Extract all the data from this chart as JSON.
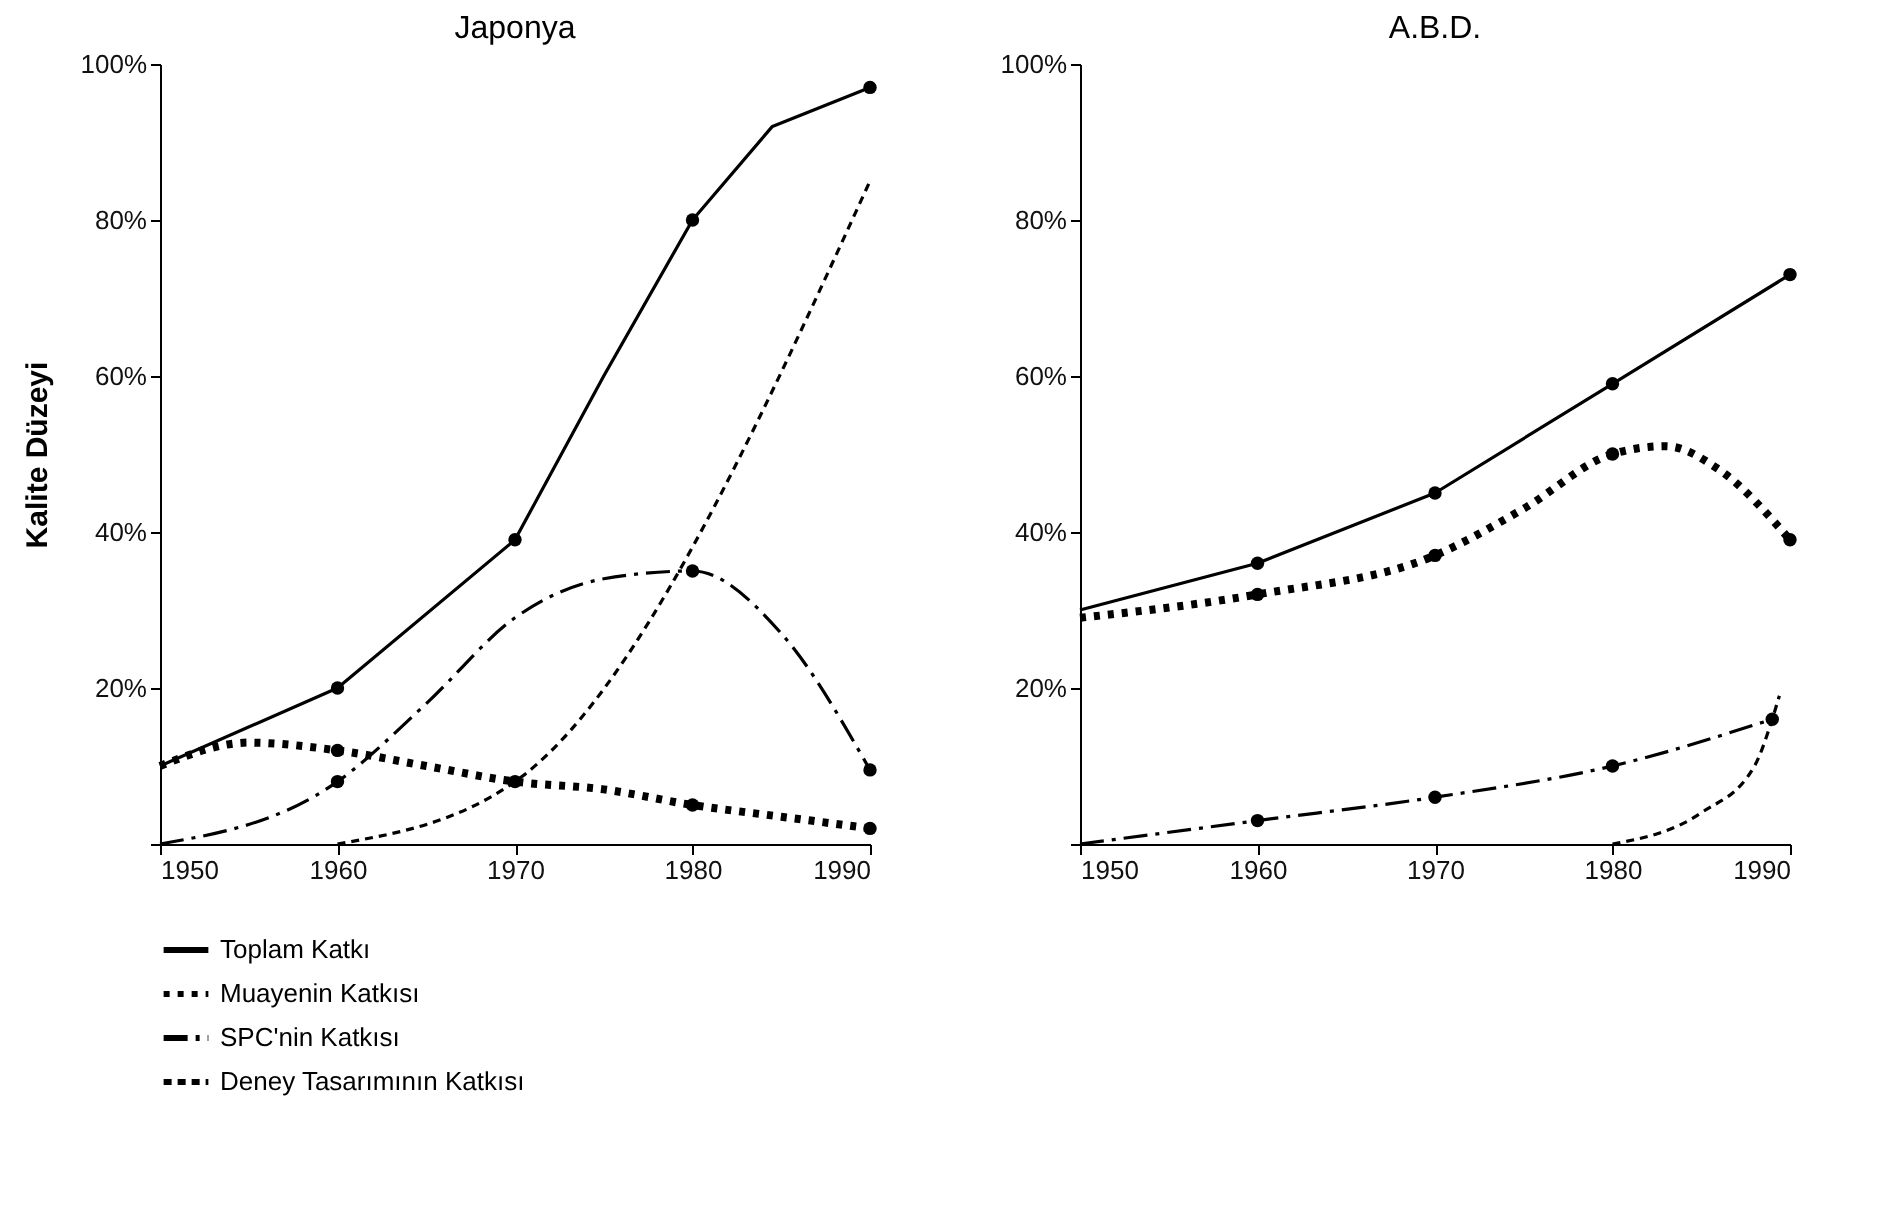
{
  "chart_data": [
    {
      "type": "line",
      "title": "Japonya",
      "ylabel": "Kalite Düzeyi",
      "xlim": [
        1950,
        1990
      ],
      "xticks": [
        1950,
        1960,
        1970,
        1980,
        1990
      ],
      "ylim": [
        0,
        100
      ],
      "yticks": [
        {
          "value": 0,
          "label": null
        },
        {
          "value": 20,
          "label": "20%"
        },
        {
          "value": 40,
          "label": "40%"
        },
        {
          "value": 60,
          "label": "60%"
        },
        {
          "value": 80,
          "label": "80%"
        },
        {
          "value": 100,
          "label": "100%"
        }
      ],
      "legend": "bottom",
      "grid": false,
      "series": [
        {
          "name": "Toplam Katkı",
          "color": "#000000",
          "line_style": "solid",
          "x": [
            1950,
            1960,
            1970,
            1975,
            1980,
            1984.5,
            1990
          ],
          "values": [
            10,
            20,
            39,
            60,
            80,
            92,
            97
          ]
        },
        {
          "name": "Muayenin Katkısı",
          "color": "#000000",
          "line_style": "dotted",
          "x": [
            1950,
            1955,
            1960,
            1965,
            1970,
            1975,
            1980,
            1985,
            1990
          ],
          "values": [
            10,
            13,
            12,
            10,
            8,
            7,
            5,
            3.5,
            2
          ]
        },
        {
          "name": "SPC'nin Katkısı",
          "color": "#000000",
          "line_style": "dashdot",
          "x": [
            1950,
            1960,
            1965,
            1970,
            1975,
            1980,
            1985,
            1990
          ],
          "values": [
            0,
            8,
            18,
            29,
            34,
            35,
            27,
            9.5
          ]
        },
        {
          "name": "Deney Tasarımının Katkısı",
          "color": "#000000",
          "line_style": "dashed",
          "x": [
            1960,
            1970,
            1990
          ],
          "values": [
            0,
            8,
            85
          ]
        },
        {
          "type": "scatter",
          "marker": "circle",
          "color": "#000000",
          "x": [
            1960,
            1970,
            1980,
            1990,
            1960,
            1970,
            1980,
            1990,
            1960,
            1980,
            1990
          ],
          "values": [
            20,
            39,
            80,
            97,
            12,
            8,
            5,
            2,
            8,
            35,
            9.5
          ]
        }
      ]
    },
    {
      "type": "line",
      "title": "A.B.D.",
      "xlim": [
        1950,
        1990
      ],
      "xticks": [
        1950,
        1960,
        1970,
        1980,
        1990
      ],
      "ylim": [
        0,
        100
      ],
      "yticks": [
        {
          "value": 0,
          "label": null
        },
        {
          "value": 20,
          "label": "20%"
        },
        {
          "value": 40,
          "label": "40%"
        },
        {
          "value": 60,
          "label": "60%"
        },
        {
          "value": 80,
          "label": "80%"
        },
        {
          "value": 100,
          "label": "100%"
        }
      ],
      "legend": "bottom",
      "grid": false,
      "series": [
        {
          "name": "Toplam Katkı",
          "color": "#000000",
          "line_style": "solid",
          "x": [
            1950,
            1960,
            1970,
            1980,
            1990
          ],
          "values": [
            30,
            36,
            45,
            59,
            73
          ]
        },
        {
          "name": "Muayenin Katkısı",
          "color": "#000000",
          "line_style": "dotted",
          "x": [
            1950,
            1960,
            1970,
            1975,
            1980,
            1983,
            1986,
            1990
          ],
          "values": [
            29,
            32,
            37,
            43,
            50,
            51,
            48,
            39
          ]
        },
        {
          "name": "SPC'nin Katkısı",
          "color": "#000000",
          "line_style": "dashdot",
          "x": [
            1950,
            1960,
            1970,
            1980,
            1989
          ],
          "values": [
            0,
            3,
            6,
            10,
            16
          ]
        },
        {
          "name": "Deney Tasarımının Katkısı",
          "color": "#000000",
          "line_style": "dashed",
          "x": [
            1980,
            1985,
            1988,
            1989,
            1989.4
          ],
          "values": [
            0,
            4,
            10,
            16,
            19
          ]
        },
        {
          "type": "scatter",
          "marker": "circle",
          "color": "#000000",
          "x": [
            1960,
            1970,
            1980,
            1990,
            1960,
            1970,
            1980,
            1990,
            1960,
            1970,
            1980,
            1989
          ],
          "values": [
            36,
            45,
            59,
            73,
            32,
            37,
            50,
            39,
            3,
            6,
            10,
            16
          ]
        }
      ]
    }
  ]
}
